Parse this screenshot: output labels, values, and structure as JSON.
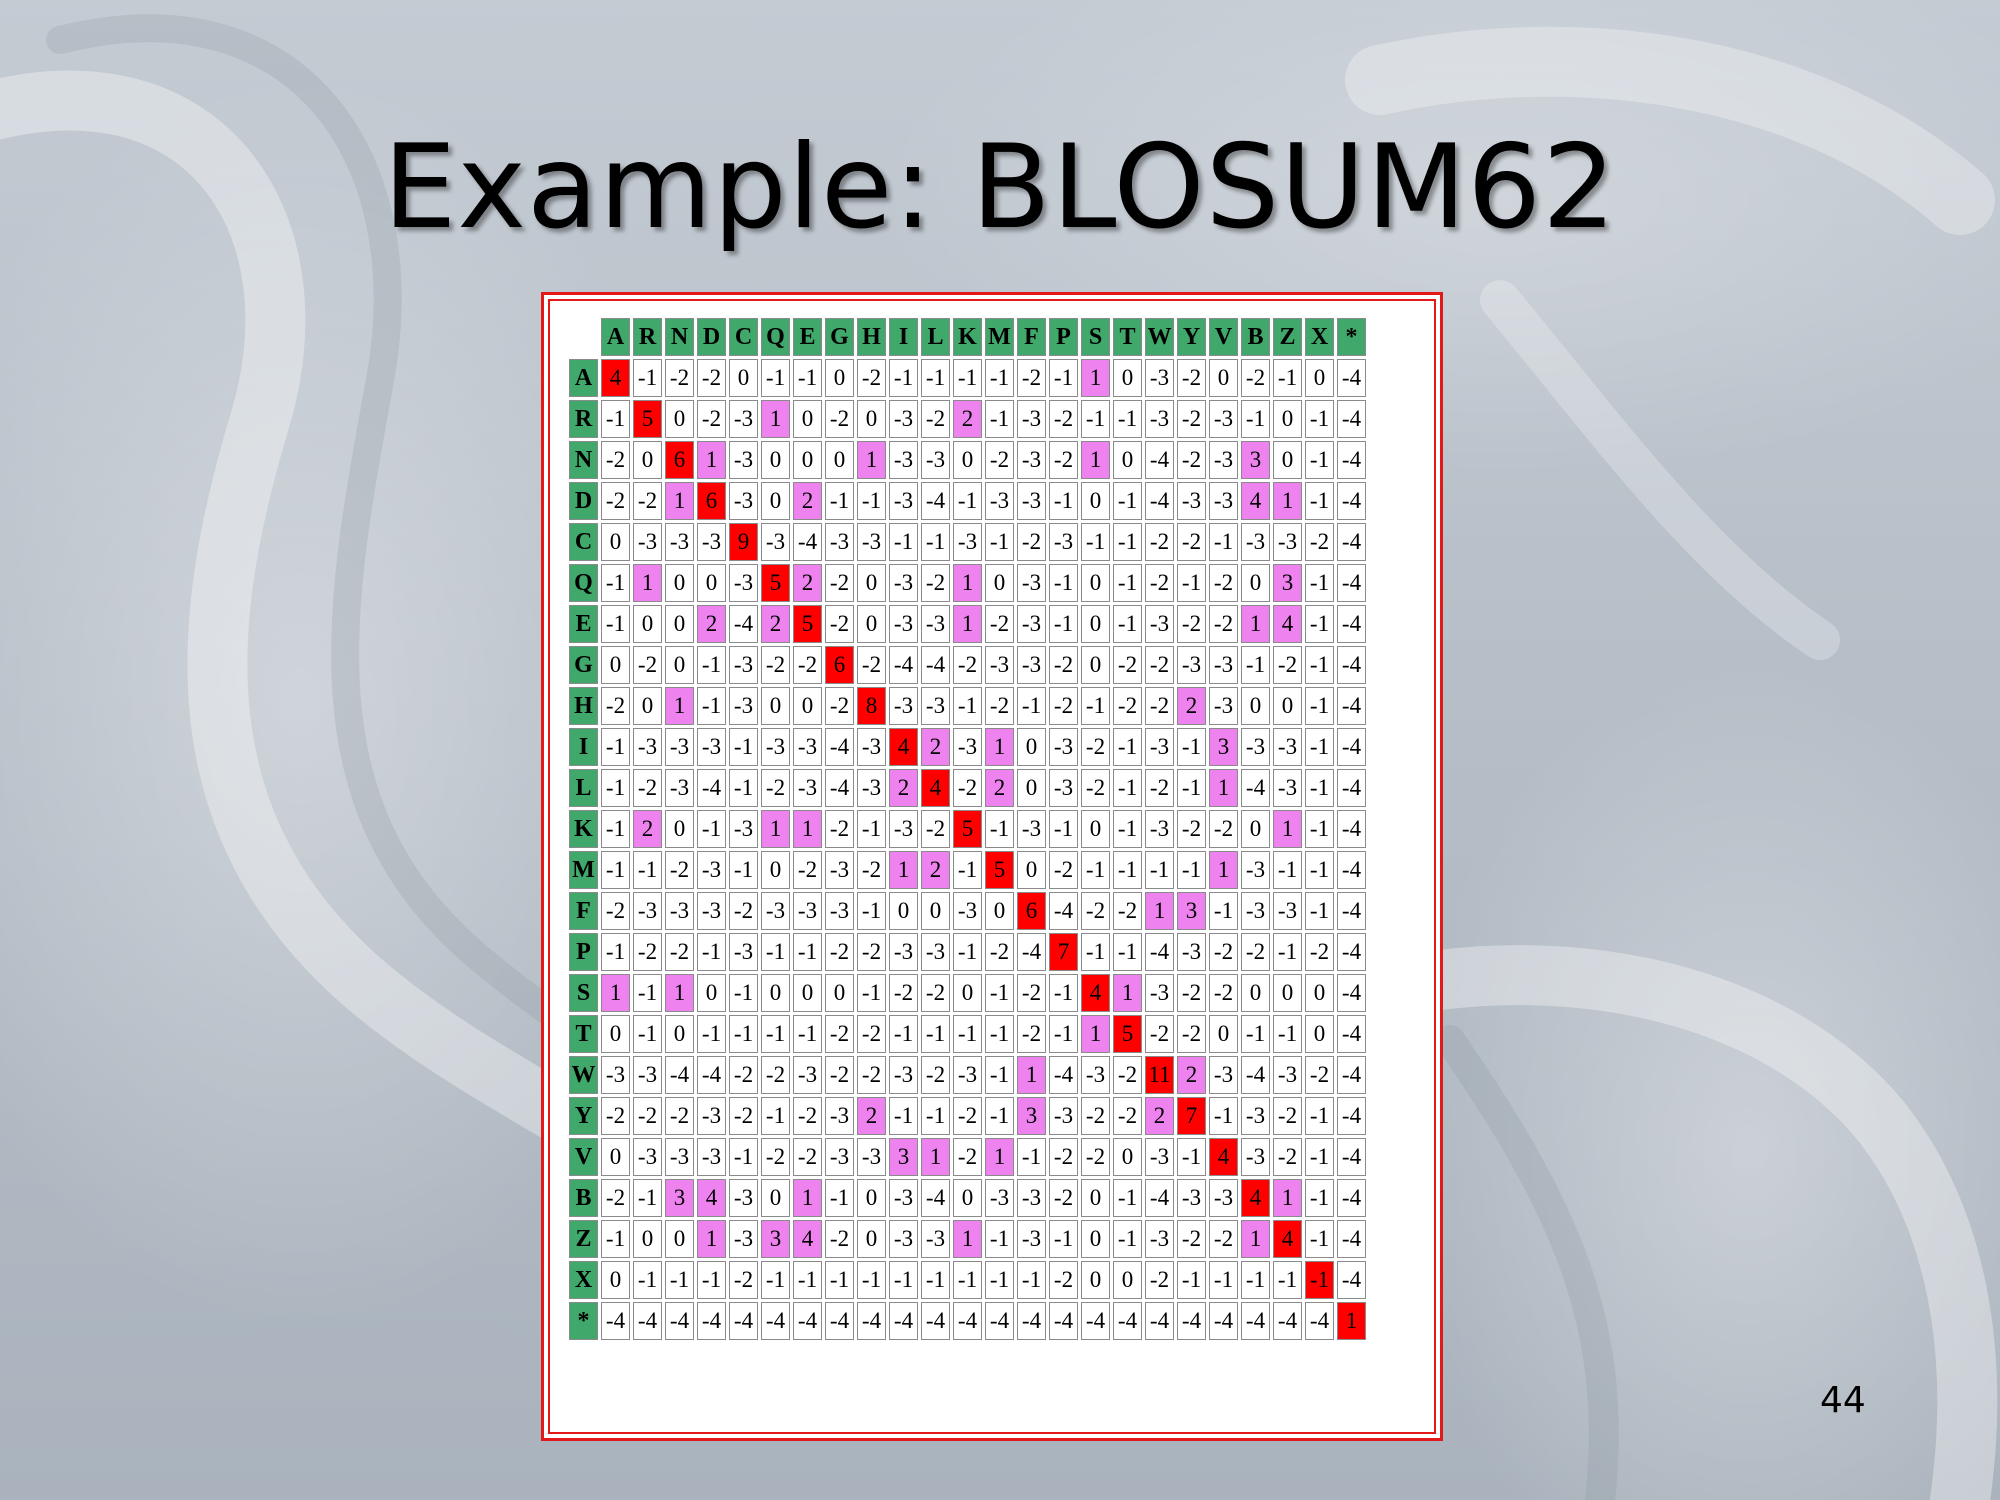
{
  "slide": {
    "title": "Example: BLOSUM62",
    "page_number": "44"
  },
  "colors": {
    "header_green": "#3fa86a",
    "diagonal_red": "#ff0000",
    "positive_violet": "#ee82ee",
    "frame_red": "#e31818"
  },
  "matrix": {
    "labels": [
      "A",
      "R",
      "N",
      "D",
      "C",
      "Q",
      "E",
      "G",
      "H",
      "I",
      "L",
      "K",
      "M",
      "F",
      "P",
      "S",
      "T",
      "W",
      "Y",
      "V",
      "B",
      "Z",
      "X",
      "*"
    ],
    "rows": [
      [
        "4",
        "-1",
        "-2",
        "-2",
        "0",
        "-1",
        "-1",
        "0",
        "-2",
        "-1",
        "-1",
        "-1",
        "-1",
        "-2",
        "-1",
        "1",
        "0",
        "-3",
        "-2",
        "0",
        "-2",
        "-1",
        "0",
        "-4"
      ],
      [
        "-1",
        "5",
        "0",
        "-2",
        "-3",
        "1",
        "0",
        "-2",
        "0",
        "-3",
        "-2",
        "2",
        "-1",
        "-3",
        "-2",
        "-1",
        "-1",
        "-3",
        "-2",
        "-3",
        "-1",
        "0",
        "-1",
        "-4"
      ],
      [
        "-2",
        "0",
        "6",
        "1",
        "-3",
        "0",
        "0",
        "0",
        "1",
        "-3",
        "-3",
        "0",
        "-2",
        "-3",
        "-2",
        "1",
        "0",
        "-4",
        "-2",
        "-3",
        "3",
        "0",
        "-1",
        "-4"
      ],
      [
        "-2",
        "-2",
        "1",
        "6",
        "-3",
        "0",
        "2",
        "-1",
        "-1",
        "-3",
        "-4",
        "-1",
        "-3",
        "-3",
        "-1",
        "0",
        "-1",
        "-4",
        "-3",
        "-3",
        "4",
        "1",
        "-1",
        "-4"
      ],
      [
        "0",
        "-3",
        "-3",
        "-3",
        "9",
        "-3",
        "-4",
        "-3",
        "-3",
        "-1",
        "-1",
        "-3",
        "-1",
        "-2",
        "-3",
        "-1",
        "-1",
        "-2",
        "-2",
        "-1",
        "-3",
        "-3",
        "-2",
        "-4"
      ],
      [
        "-1",
        "1",
        "0",
        "0",
        "-3",
        "5",
        "2",
        "-2",
        "0",
        "-3",
        "-2",
        "1",
        "0",
        "-3",
        "-1",
        "0",
        "-1",
        "-2",
        "-1",
        "-2",
        "0",
        "3",
        "-1",
        "-4"
      ],
      [
        "-1",
        "0",
        "0",
        "2",
        "-4",
        "2",
        "5",
        "-2",
        "0",
        "-3",
        "-3",
        "1",
        "-2",
        "-3",
        "-1",
        "0",
        "-1",
        "-3",
        "-2",
        "-2",
        "1",
        "4",
        "-1",
        "-4"
      ],
      [
        "0",
        "-2",
        "0",
        "-1",
        "-3",
        "-2",
        "-2",
        "6",
        "-2",
        "-4",
        "-4",
        "-2",
        "-3",
        "-3",
        "-2",
        "0",
        "-2",
        "-2",
        "-3",
        "-3",
        "-1",
        "-2",
        "-1",
        "-4"
      ],
      [
        "-2",
        "0",
        "1",
        "-1",
        "-3",
        "0",
        "0",
        "-2",
        "8",
        "-3",
        "-3",
        "-1",
        "-2",
        "-1",
        "-2",
        "-1",
        "-2",
        "-2",
        "2",
        "-3",
        "0",
        "0",
        "-1",
        "-4"
      ],
      [
        "-1",
        "-3",
        "-3",
        "-3",
        "-1",
        "-3",
        "-3",
        "-4",
        "-3",
        "4",
        "2",
        "-3",
        "1",
        "0",
        "-3",
        "-2",
        "-1",
        "-3",
        "-1",
        "3",
        "-3",
        "-3",
        "-1",
        "-4"
      ],
      [
        "-1",
        "-2",
        "-3",
        "-4",
        "-1",
        "-2",
        "-3",
        "-4",
        "-3",
        "2",
        "4",
        "-2",
        "2",
        "0",
        "-3",
        "-2",
        "-1",
        "-2",
        "-1",
        "1",
        "-4",
        "-3",
        "-1",
        "-4"
      ],
      [
        "-1",
        "2",
        "0",
        "-1",
        "-3",
        "1",
        "1",
        "-2",
        "-1",
        "-3",
        "-2",
        "5",
        "-1",
        "-3",
        "-1",
        "0",
        "-1",
        "-3",
        "-2",
        "-2",
        "0",
        "1",
        "-1",
        "-4"
      ],
      [
        "-1",
        "-1",
        "-2",
        "-3",
        "-1",
        "0",
        "-2",
        "-3",
        "-2",
        "1",
        "2",
        "-1",
        "5",
        "0",
        "-2",
        "-1",
        "-1",
        "-1",
        "-1",
        "1",
        "-3",
        "-1",
        "-1",
        "-4"
      ],
      [
        "-2",
        "-3",
        "-3",
        "-3",
        "-2",
        "-3",
        "-3",
        "-3",
        "-1",
        "0",
        "0",
        "-3",
        "0",
        "6",
        "-4",
        "-2",
        "-2",
        "1",
        "3",
        "-1",
        "-3",
        "-3",
        "-1",
        "-4"
      ],
      [
        "-1",
        "-2",
        "-2",
        "-1",
        "-3",
        "-1",
        "-1",
        "-2",
        "-2",
        "-3",
        "-3",
        "-1",
        "-2",
        "-4",
        "7",
        "-1",
        "-1",
        "-4",
        "-3",
        "-2",
        "-2",
        "-1",
        "-2",
        "-4"
      ],
      [
        "1",
        "-1",
        "1",
        "0",
        "-1",
        "0",
        "0",
        "0",
        "-1",
        "-2",
        "-2",
        "0",
        "-1",
        "-2",
        "-1",
        "4",
        "1",
        "-3",
        "-2",
        "-2",
        "0",
        "0",
        "0",
        "-4"
      ],
      [
        "0",
        "-1",
        "0",
        "-1",
        "-1",
        "-1",
        "-1",
        "-2",
        "-2",
        "-1",
        "-1",
        "-1",
        "-1",
        "-2",
        "-1",
        "1",
        "5",
        "-2",
        "-2",
        "0",
        "-1",
        "-1",
        "0",
        "-4"
      ],
      [
        "-3",
        "-3",
        "-4",
        "-4",
        "-2",
        "-2",
        "-3",
        "-2",
        "-2",
        "-3",
        "-2",
        "-3",
        "-1",
        "1",
        "-4",
        "-3",
        "-2",
        "11",
        "2",
        "-3",
        "-4",
        "-3",
        "-2",
        "-4"
      ],
      [
        "-2",
        "-2",
        "-2",
        "-3",
        "-2",
        "-1",
        "-2",
        "-3",
        "2",
        "-1",
        "-1",
        "-2",
        "-1",
        "3",
        "-3",
        "-2",
        "-2",
        "2",
        "7",
        "-1",
        "-3",
        "-2",
        "-1",
        "-4"
      ],
      [
        "0",
        "-3",
        "-3",
        "-3",
        "-1",
        "-2",
        "-2",
        "-3",
        "-3",
        "3",
        "1",
        "-2",
        "1",
        "-1",
        "-2",
        "-2",
        "0",
        "-3",
        "-1",
        "4",
        "-3",
        "-2",
        "-1",
        "-4"
      ],
      [
        "-2",
        "-1",
        "3",
        "4",
        "-3",
        "0",
        "1",
        "-1",
        "0",
        "-3",
        "-4",
        "0",
        "-3",
        "-3",
        "-2",
        "0",
        "-1",
        "-4",
        "-3",
        "-3",
        "4",
        "1",
        "-1",
        "-4"
      ],
      [
        "-1",
        "0",
        "0",
        "1",
        "-3",
        "3",
        "4",
        "-2",
        "0",
        "-3",
        "-3",
        "1",
        "-1",
        "-3",
        "-1",
        "0",
        "-1",
        "-3",
        "-2",
        "-2",
        "1",
        "4",
        "-1",
        "-4"
      ],
      [
        "0",
        "-1",
        "-1",
        "-1",
        "-2",
        "-1",
        "-1",
        "-1",
        "-1",
        "-1",
        "-1",
        "-1",
        "-1",
        "-1",
        "-2",
        "0",
        "0",
        "-2",
        "-1",
        "-1",
        "-1",
        "-1",
        "-1",
        "-4"
      ],
      [
        "-4",
        "-4",
        "-4",
        "-4",
        "-4",
        "-4",
        "-4",
        "-4",
        "-4",
        "-4",
        "-4",
        "-4",
        "-4",
        "-4",
        "-4",
        "-4",
        "-4",
        "-4",
        "-4",
        "-4",
        "-4",
        "-4",
        "-4",
        "1"
      ]
    ]
  }
}
